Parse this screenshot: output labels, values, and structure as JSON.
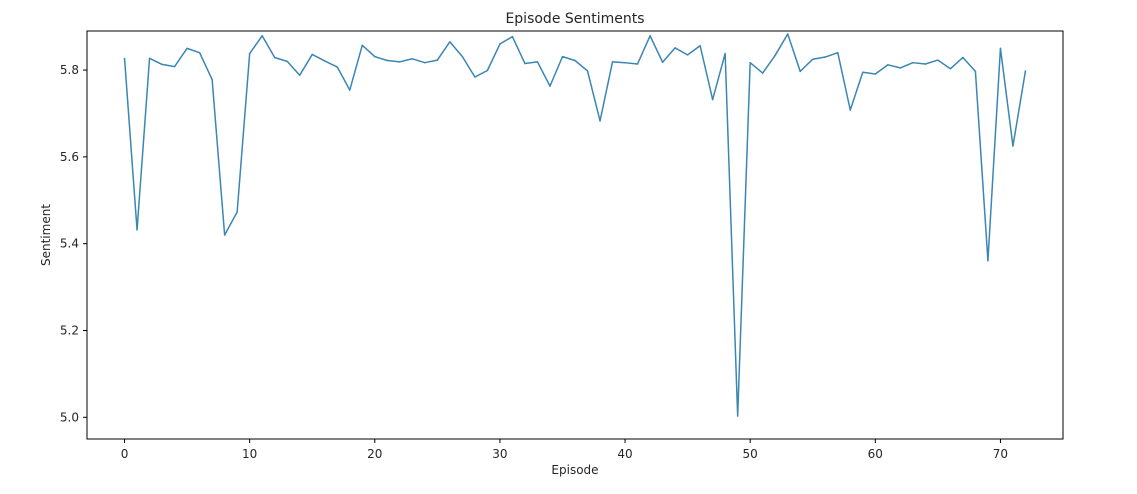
{
  "chart_data": {
    "type": "line",
    "title": "Episode Sentiments",
    "xlabel": "Episode",
    "ylabel": "Sentiment",
    "xlim": [
      -3,
      75
    ],
    "ylim": [
      4.95,
      5.89
    ],
    "xticks": [
      0,
      10,
      20,
      30,
      40,
      50,
      60,
      70
    ],
    "yticks": [
      5.0,
      5.2,
      5.4,
      5.6,
      5.8
    ],
    "xtick_labels": [
      "0",
      "10",
      "20",
      "30",
      "40",
      "50",
      "60",
      "70"
    ],
    "ytick_labels": [
      "5.0",
      "5.2",
      "5.4",
      "5.6",
      "5.8"
    ],
    "grid": false,
    "legend": "none",
    "line_color": "#3a86b4",
    "series": [
      {
        "x": [
          0,
          1,
          2,
          3,
          4,
          5,
          6,
          7,
          8,
          9,
          10,
          11,
          12,
          13,
          14,
          15,
          16,
          17,
          18,
          19,
          20,
          21,
          22,
          23,
          24,
          25,
          26,
          27,
          28,
          29,
          30,
          31,
          32,
          33,
          34,
          35,
          36,
          37,
          38,
          39,
          40,
          41,
          42,
          43,
          44,
          45,
          46,
          47,
          48,
          49,
          50,
          51,
          52,
          53,
          54,
          55,
          56,
          57,
          58,
          59,
          60,
          61,
          62,
          63,
          64,
          65,
          66,
          67,
          68,
          69,
          70,
          71,
          72
        ],
        "values": [
          5.827,
          5.432,
          5.827,
          5.813,
          5.808,
          5.85,
          5.84,
          5.778,
          5.42,
          5.473,
          5.838,
          5.879,
          5.829,
          5.82,
          5.788,
          5.836,
          5.821,
          5.807,
          5.754,
          5.857,
          5.831,
          5.822,
          5.819,
          5.826,
          5.817,
          5.823,
          5.865,
          5.831,
          5.784,
          5.799,
          5.86,
          5.877,
          5.815,
          5.819,
          5.763,
          5.831,
          5.822,
          5.798,
          5.683,
          5.819,
          5.817,
          5.814,
          5.879,
          5.818,
          5.851,
          5.835,
          5.856,
          5.732,
          5.838,
          5.003,
          5.817,
          5.793,
          5.834,
          5.883,
          5.797,
          5.825,
          5.83,
          5.84,
          5.708,
          5.795,
          5.791,
          5.812,
          5.805,
          5.817,
          5.814,
          5.823,
          5.803,
          5.829,
          5.797,
          5.361,
          5.85,
          5.625,
          5.798
        ]
      }
    ]
  }
}
